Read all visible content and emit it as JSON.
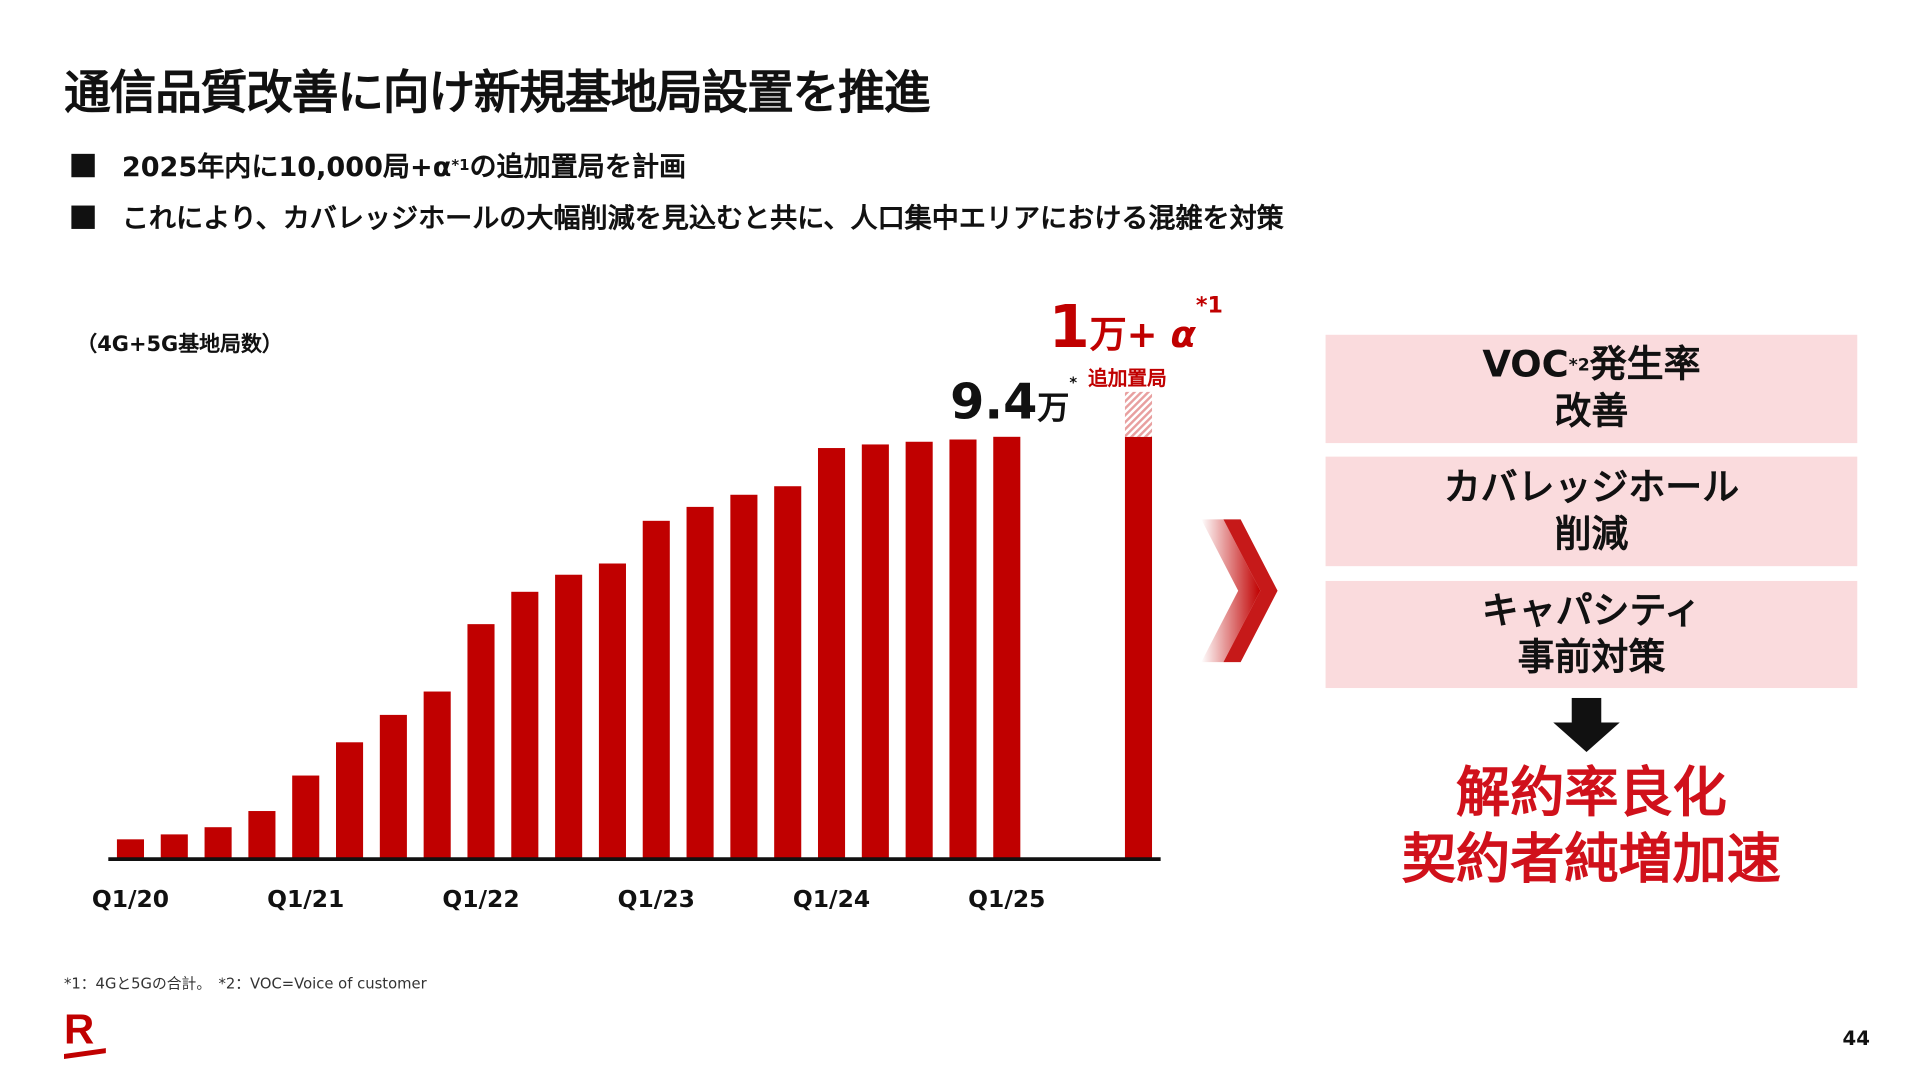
{
  "title": "通信品質改善に向け新規基地局設置を推進",
  "bullets": [
    {
      "text": "2025年内に10,000局+α",
      "sup": "*1",
      "after": "の追加置局を計画"
    },
    {
      "text": "これにより、カバレッジホールの大幅削減を見込むと共に、人口集中エリアにおける混雑を対策"
    }
  ],
  "chart_data": {
    "type": "bar",
    "unit_label": "（4G+5G基地局数）",
    "categories": [
      "Q1/20",
      "Q2/20",
      "Q3/20",
      "Q4/20",
      "Q1/21",
      "Q2/21",
      "Q3/21",
      "Q4/21",
      "Q1/22",
      "Q2/22",
      "Q3/22",
      "Q4/22",
      "Q1/23",
      "Q2/23",
      "Q3/23",
      "Q4/23",
      "Q1/24",
      "Q2/24",
      "Q3/24",
      "Q4/24",
      "Q1/25"
    ],
    "tick_labels": [
      "Q1/20",
      "Q1/21",
      "Q1/22",
      "Q1/23",
      "Q1/24",
      "Q1/25"
    ],
    "values": [
      0.44,
      0.55,
      0.71,
      1.07,
      1.86,
      2.6,
      3.21,
      3.73,
      5.23,
      5.95,
      6.33,
      6.58,
      7.53,
      7.84,
      8.11,
      8.3,
      9.15,
      9.23,
      9.29,
      9.34,
      9.4
    ],
    "value_unit": "万",
    "last_label": {
      "value": "9.4",
      "unit": "万",
      "mark": "*"
    },
    "additional_bar": {
      "base": 9.4,
      "addition": 1.0,
      "label_num": "1",
      "label_unit": "万",
      "label_plus": "+ α",
      "label_sup": "*1",
      "sublabel": "追加置局"
    },
    "ylim": [
      0,
      10.5
    ],
    "grid": false,
    "bar_color": "#c00000",
    "hatch_color": "#e8a0a0"
  },
  "effects": [
    {
      "line1": "VOC",
      "sup": "*2",
      "line1b": "発生率",
      "line2": "改善"
    },
    {
      "line1": "カバレッジホール",
      "line2": "削減"
    },
    {
      "line1": "キャパシティ",
      "line2": "事前対策"
    }
  ],
  "result": {
    "line1": "解約率良化",
    "line2": "契約者純増加速"
  },
  "footnote": "*1：4Gと5Gの合計。　*2：VOC=Voice of customer",
  "page_number": "44",
  "logo_text": "R",
  "colors": {
    "accent": "#c00000",
    "box_bg": "#fadbdd",
    "result_text": "#d0111b"
  }
}
